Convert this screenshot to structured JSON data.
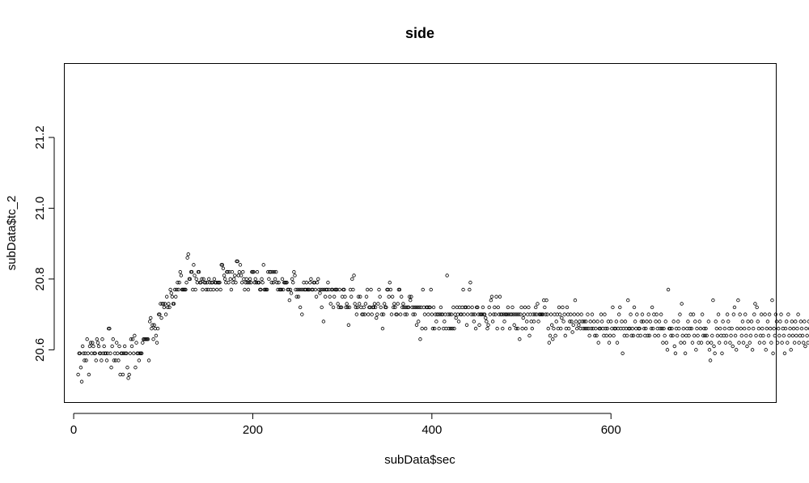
{
  "chart_data": {
    "type": "scatter",
    "title": "side",
    "xlabel": "subData$sec",
    "ylabel": "subData$tc_2",
    "xlim": [
      -10,
      785
    ],
    "ylim": [
      20.45,
      21.41
    ],
    "xticks": [
      0,
      200,
      400,
      600
    ],
    "xtick_labels": [
      "0",
      "200",
      "400",
      "600"
    ],
    "yticks": [
      20.6,
      20.8,
      21.0,
      21.2
    ],
    "ytick_labels": [
      "20.6",
      "20.8",
      "21.0",
      "21.2"
    ],
    "marker": "open-circle",
    "grid": false,
    "series": [
      {
        "x_start": 5,
        "x_step": 1,
        "y": [
          20.53,
          20.59,
          20.59,
          20.55,
          20.51,
          20.61,
          20.59,
          20.57,
          20.59,
          20.57,
          20.63,
          20.59,
          20.53,
          20.61,
          20.62,
          20.59,
          20.62,
          20.61,
          20.59,
          20.59,
          20.57,
          20.63,
          20.62,
          20.61,
          20.59,
          20.59,
          20.57,
          20.63,
          20.59,
          20.61,
          20.59,
          20.59,
          20.57,
          20.59,
          20.66,
          20.66,
          20.59,
          20.55,
          20.61,
          20.63,
          20.57,
          20.59,
          20.57,
          20.62,
          20.59,
          20.57,
          20.61,
          20.53,
          20.59,
          20.59,
          20.53,
          20.59,
          20.61,
          20.59,
          20.59,
          20.55,
          20.52,
          20.53,
          20.59,
          20.63,
          20.61,
          20.63,
          20.59,
          20.64,
          20.55,
          20.62,
          20.59,
          20.59,
          20.57,
          20.59,
          20.59,
          20.59,
          20.62,
          20.63,
          20.63,
          20.63,
          20.63,
          20.63,
          20.63,
          20.57,
          20.68,
          20.69,
          20.66,
          20.67,
          20.63,
          20.67,
          20.66,
          20.64,
          20.62,
          20.66,
          20.7,
          20.7,
          20.73,
          20.69,
          20.73,
          20.73,
          20.72,
          20.73,
          20.7,
          20.75,
          20.72,
          20.73,
          20.72,
          20.77,
          20.76,
          20.75,
          20.73,
          20.73,
          20.77,
          20.75,
          20.77,
          20.79,
          20.77,
          20.79,
          20.82,
          20.81,
          20.77,
          20.77,
          20.77,
          20.77,
          20.77,
          20.79,
          20.86,
          20.87,
          20.8,
          20.8,
          20.82,
          20.82,
          20.77,
          20.84,
          20.81,
          20.77,
          20.8,
          20.79,
          20.82,
          20.82,
          20.79,
          20.79,
          20.8,
          20.77,
          20.8,
          20.79,
          20.79,
          20.77,
          20.79,
          20.77,
          20.8,
          20.79,
          20.77,
          20.79,
          20.79,
          20.77,
          20.8,
          20.79,
          20.79,
          20.77,
          20.79,
          20.79,
          20.79,
          20.77,
          20.84,
          20.84,
          20.83,
          20.81,
          20.8,
          20.79,
          20.82,
          20.82,
          20.79,
          20.82,
          20.8,
          20.77,
          20.82,
          20.79,
          20.8,
          20.81,
          20.79,
          20.85,
          20.85,
          20.81,
          20.82,
          20.84,
          20.81,
          20.79,
          20.82,
          20.8,
          20.77,
          20.79,
          20.8,
          20.79,
          20.77,
          20.79,
          20.8,
          20.79,
          20.82,
          20.82,
          20.82,
          20.79,
          20.8,
          20.79,
          20.82,
          20.79,
          20.79,
          20.77,
          20.77,
          20.8,
          20.79,
          20.84,
          20.77,
          20.77,
          20.77,
          20.77,
          20.82,
          20.8,
          20.82,
          20.82,
          20.79,
          20.82,
          20.79,
          20.82,
          20.8,
          20.82,
          20.79,
          20.77,
          20.79,
          20.77,
          20.77,
          20.77,
          20.8,
          20.77,
          20.79,
          20.79,
          20.79,
          20.79,
          20.77,
          20.77,
          20.74,
          20.77,
          20.76,
          20.8,
          20.79,
          20.82,
          20.81,
          20.77,
          20.75,
          20.77,
          20.75,
          20.77,
          20.72,
          20.77,
          20.7,
          20.77,
          20.79,
          20.77,
          20.77,
          20.79,
          20.77,
          20.77,
          20.77,
          20.79,
          20.8,
          20.77,
          20.77,
          20.79,
          20.79,
          20.77,
          20.75,
          20.79,
          20.8,
          20.77,
          20.76,
          20.77,
          20.72,
          20.77,
          20.68,
          20.77,
          20.75,
          20.77,
          20.77,
          20.79,
          20.77,
          20.75,
          20.73,
          20.77,
          20.77,
          20.72,
          20.75,
          20.77,
          20.77,
          20.77,
          20.73,
          20.72,
          20.77,
          20.72,
          20.72,
          20.75,
          20.77,
          20.77,
          20.75,
          20.72,
          20.73,
          20.72,
          20.67,
          20.72,
          20.77,
          20.75,
          20.8,
          20.77,
          20.81,
          20.73,
          20.72,
          20.7,
          20.72,
          20.75,
          20.73,
          20.75,
          20.72,
          20.7,
          20.7,
          20.72,
          20.7,
          20.73,
          20.75,
          20.77,
          20.7,
          20.72,
          20.72,
          20.77,
          20.7,
          20.72,
          20.72,
          20.73,
          20.72,
          20.69,
          20.7,
          20.73,
          20.77,
          20.75,
          20.72,
          20.7,
          20.66,
          20.7,
          20.73,
          20.72,
          20.72,
          20.77,
          20.77,
          20.75,
          20.79,
          20.77,
          20.7,
          20.75,
          20.72,
          20.73,
          20.72,
          20.7,
          20.7,
          20.73,
          20.77,
          20.77,
          20.7,
          20.75,
          20.72,
          20.73,
          20.72,
          20.7,
          20.72,
          20.7,
          20.72,
          20.72,
          20.75,
          20.74,
          20.75,
          20.72,
          20.7,
          20.72,
          20.7,
          20.72,
          20.67,
          20.72,
          20.68,
          20.72,
          20.63,
          20.72,
          20.66,
          20.77,
          20.72,
          20.7,
          20.66,
          20.72,
          20.72,
          20.7,
          20.72,
          20.72,
          20.77,
          20.7,
          20.66,
          20.72,
          20.66,
          20.7,
          20.68,
          20.7,
          20.7,
          20.66,
          20.7,
          20.72,
          20.7,
          20.7,
          20.66,
          20.68,
          20.7,
          20.66,
          20.81,
          20.7,
          20.66,
          20.7,
          20.66,
          20.7,
          20.66,
          20.72,
          20.66,
          20.7,
          20.69,
          20.72,
          20.7,
          20.68,
          20.72,
          20.7,
          20.7,
          20.72,
          20.77,
          20.7,
          20.72,
          20.72,
          20.67,
          20.7,
          20.72,
          20.77,
          20.79,
          20.7,
          20.72,
          20.7,
          20.68,
          20.7,
          20.66,
          20.72,
          20.72,
          20.7,
          20.67,
          20.7,
          20.7,
          20.7,
          20.72,
          20.7,
          20.7,
          20.69,
          20.68,
          20.66,
          20.67,
          20.72,
          20.7,
          20.74,
          20.75,
          20.68,
          20.7,
          20.72,
          20.7,
          20.75,
          20.66,
          20.72,
          20.7,
          20.75,
          20.7,
          20.7,
          20.66,
          20.7,
          20.68,
          20.7,
          20.7,
          20.7,
          20.72,
          20.7,
          20.66,
          20.7,
          20.7,
          20.72,
          20.7,
          20.67,
          20.7,
          20.66,
          20.7,
          20.66,
          20.7,
          20.63,
          20.7,
          20.72,
          20.66,
          20.69,
          20.7,
          20.72,
          20.66,
          20.68,
          20.7,
          20.72,
          20.64,
          20.7,
          20.68,
          20.66,
          20.7,
          20.68,
          20.7,
          20.72,
          20.7,
          20.73,
          20.68,
          20.7,
          20.7,
          20.7,
          20.7,
          20.7,
          20.74,
          20.72,
          20.7,
          20.74,
          20.7,
          20.66,
          20.62,
          20.64,
          20.7,
          20.67,
          20.63,
          20.66,
          20.7,
          20.64,
          20.68,
          20.7,
          20.66,
          20.72,
          20.7,
          20.66,
          20.69,
          20.72,
          20.68,
          20.7,
          20.64,
          20.66,
          20.72,
          20.7,
          20.66,
          20.68,
          20.7,
          20.68,
          20.65,
          20.67,
          20.7,
          20.74,
          20.68,
          20.66,
          20.7,
          20.67,
          20.68,
          20.66,
          20.7,
          20.68,
          20.66,
          20.68,
          20.66,
          20.68,
          20.66,
          20.7,
          20.66,
          20.64,
          20.68,
          20.66,
          20.7,
          20.66,
          20.68,
          20.64,
          20.66,
          20.64,
          20.68,
          20.62,
          20.66,
          20.66,
          20.7,
          20.68,
          20.66,
          20.64,
          20.7,
          20.66,
          20.64,
          20.66,
          20.68,
          20.62,
          20.64,
          20.68,
          20.66,
          20.72,
          20.64,
          20.66,
          20.66,
          20.68,
          20.62,
          20.66,
          20.7,
          20.72,
          20.66,
          20.68,
          20.59,
          20.66,
          20.64,
          20.68,
          20.66,
          20.64,
          20.74,
          20.66,
          20.66,
          20.7,
          20.64,
          20.66,
          20.64,
          20.72,
          20.68,
          20.66,
          20.7,
          20.64,
          20.66,
          20.66,
          20.64,
          20.68,
          20.7,
          20.68,
          20.66,
          20.64,
          20.66,
          20.68,
          20.64,
          20.7,
          20.64,
          20.68,
          20.66,
          20.72,
          20.66,
          20.7,
          20.64,
          20.68,
          20.7,
          20.66,
          20.64,
          20.68,
          20.66,
          20.7,
          20.66,
          20.62,
          20.66,
          20.64,
          20.68,
          20.62,
          20.6,
          20.77,
          20.66,
          20.66,
          20.64,
          20.66,
          20.64,
          20.68,
          20.61,
          20.59,
          20.66,
          20.64,
          20.68,
          20.66,
          20.7,
          20.62,
          20.73,
          20.64,
          20.66,
          20.62,
          20.59,
          20.64,
          20.66,
          20.68,
          20.64,
          20.66,
          20.7,
          20.66,
          20.62,
          20.7,
          20.64,
          20.68,
          20.6,
          20.66,
          20.64,
          20.62,
          20.68,
          20.66,
          20.62,
          20.7,
          20.64,
          20.66,
          20.64,
          20.66,
          20.64,
          20.62,
          20.68,
          20.6,
          20.57,
          20.62,
          20.64,
          20.74,
          20.61,
          20.59,
          20.68,
          20.66,
          20.64,
          20.7,
          20.62,
          20.66,
          20.64,
          20.59,
          20.68,
          20.64,
          20.66,
          20.62,
          20.64,
          20.7,
          20.68,
          20.66,
          20.62,
          20.64,
          20.66,
          20.61,
          20.7,
          20.72,
          20.64,
          20.6,
          20.66,
          20.74,
          20.62,
          20.7,
          20.66,
          20.64,
          20.68,
          20.62,
          20.66,
          20.7,
          20.64,
          20.61,
          20.68,
          20.66,
          20.62,
          20.64,
          20.68,
          20.6,
          20.66,
          20.7,
          20.73,
          20.64,
          20.72,
          20.68,
          20.66,
          20.62,
          20.64,
          20.7,
          20.66,
          20.64,
          20.62,
          20.7,
          20.6,
          20.66,
          20.68,
          20.64,
          20.7,
          20.66,
          20.62,
          20.74,
          20.59,
          20.66,
          20.64,
          20.7,
          20.68,
          20.62,
          20.66,
          20.64,
          20.68,
          20.7,
          20.62,
          20.66,
          20.64,
          20.59,
          20.66,
          20.68,
          20.62,
          20.7,
          20.64,
          20.66,
          20.6,
          20.68,
          20.64,
          20.66,
          20.62,
          20.68,
          20.64,
          20.66,
          20.7,
          20.62,
          20.64,
          20.68,
          20.66,
          20.64,
          20.62,
          20.68,
          20.61,
          20.66,
          20.64,
          20.62,
          20.68,
          20.66,
          20.64,
          20.62,
          20.61,
          20.62,
          20.68,
          20.61,
          20.62,
          20.61,
          20.68,
          20.61,
          20.61
        ]
      }
    ]
  }
}
